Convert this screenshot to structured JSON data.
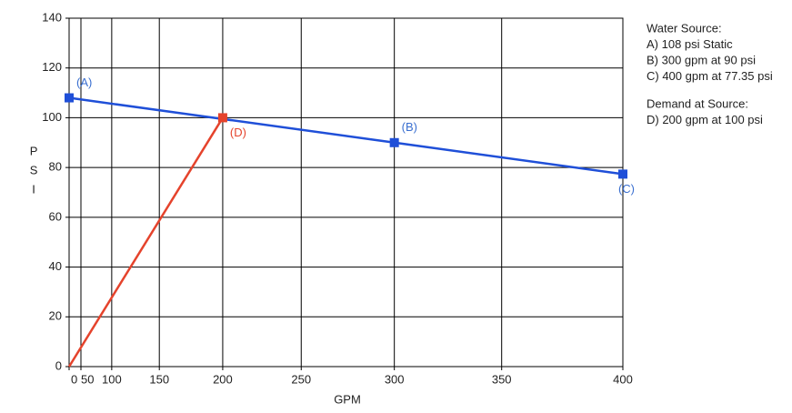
{
  "chart_data": {
    "type": "line",
    "xlabel": "GPM",
    "ylabel": "PSI",
    "xscale": "hydraulic",
    "xlim": [
      0,
      400
    ],
    "ylim": [
      0,
      140
    ],
    "xticks": [
      0,
      50,
      100,
      150,
      200,
      250,
      300,
      350,
      400
    ],
    "yticks": [
      0,
      20,
      40,
      60,
      80,
      100,
      120,
      140
    ],
    "grid": true,
    "series": [
      {
        "name": "Water Source",
        "color": "#1f4fd8",
        "x": [
          0,
          300,
          400
        ],
        "values": [
          108,
          90,
          77.35
        ],
        "point_labels": [
          "(A)",
          "(B)",
          "(C)"
        ],
        "label_color": "#3a6fd0",
        "markers": [
          true,
          true,
          true
        ]
      },
      {
        "name": "Demand at Source",
        "color": "#e5432c",
        "x": [
          0,
          200
        ],
        "values": [
          0,
          100
        ],
        "point_labels": [
          null,
          "(D)"
        ],
        "label_color": "#e5432c",
        "markers": [
          false,
          true
        ]
      }
    ],
    "notes": [
      [
        "Water Source:",
        "A) 108 psi Static",
        "B) 300 gpm at 90 psi",
        "C) 400 gpm at 77.35 psi"
      ],
      [
        "Demand at Source:",
        "D) 200 gpm at 100 psi"
      ]
    ]
  }
}
